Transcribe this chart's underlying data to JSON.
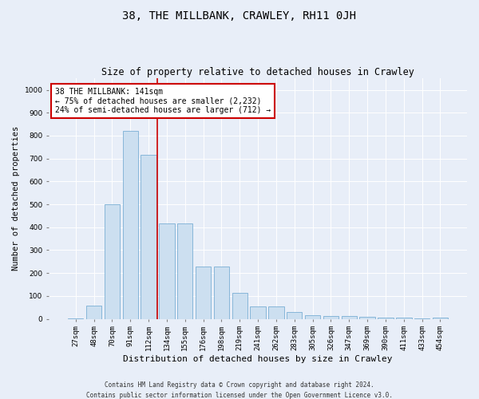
{
  "title": "38, THE MILLBANK, CRAWLEY, RH11 0JH",
  "subtitle": "Size of property relative to detached houses in Crawley",
  "xlabel": "Distribution of detached houses by size in Crawley",
  "ylabel": "Number of detached properties",
  "footer_line1": "Contains HM Land Registry data © Crown copyright and database right 2024.",
  "footer_line2": "Contains public sector information licensed under the Open Government Licence v3.0.",
  "categories": [
    "27sqm",
    "48sqm",
    "70sqm",
    "91sqm",
    "112sqm",
    "134sqm",
    "155sqm",
    "176sqm",
    "198sqm",
    "219sqm",
    "241sqm",
    "262sqm",
    "283sqm",
    "305sqm",
    "326sqm",
    "347sqm",
    "369sqm",
    "390sqm",
    "411sqm",
    "433sqm",
    "454sqm"
  ],
  "values": [
    3,
    58,
    500,
    820,
    715,
    415,
    415,
    228,
    228,
    115,
    55,
    55,
    30,
    15,
    12,
    12,
    10,
    5,
    5,
    3,
    5
  ],
  "bar_color": "#ccdff0",
  "bar_edge_color": "#7aafd4",
  "vline_color": "#cc0000",
  "vline_x": 4.5,
  "annotation_text": "38 THE MILLBANK: 141sqm\n← 75% of detached houses are smaller (2,232)\n24% of semi-detached houses are larger (712) →",
  "annotation_box_color": "#ffffff",
  "annotation_box_edge": "#cc0000",
  "ylim": [
    0,
    1050
  ],
  "yticks": [
    0,
    100,
    200,
    300,
    400,
    500,
    600,
    700,
    800,
    900,
    1000
  ],
  "background_color": "#e8eef8",
  "plot_bg_color": "#e8eef8",
  "title_fontsize": 10,
  "subtitle_fontsize": 8.5,
  "xlabel_fontsize": 8,
  "ylabel_fontsize": 7.5,
  "tick_fontsize": 6.5,
  "annotation_fontsize": 7,
  "footer_fontsize": 5.5
}
